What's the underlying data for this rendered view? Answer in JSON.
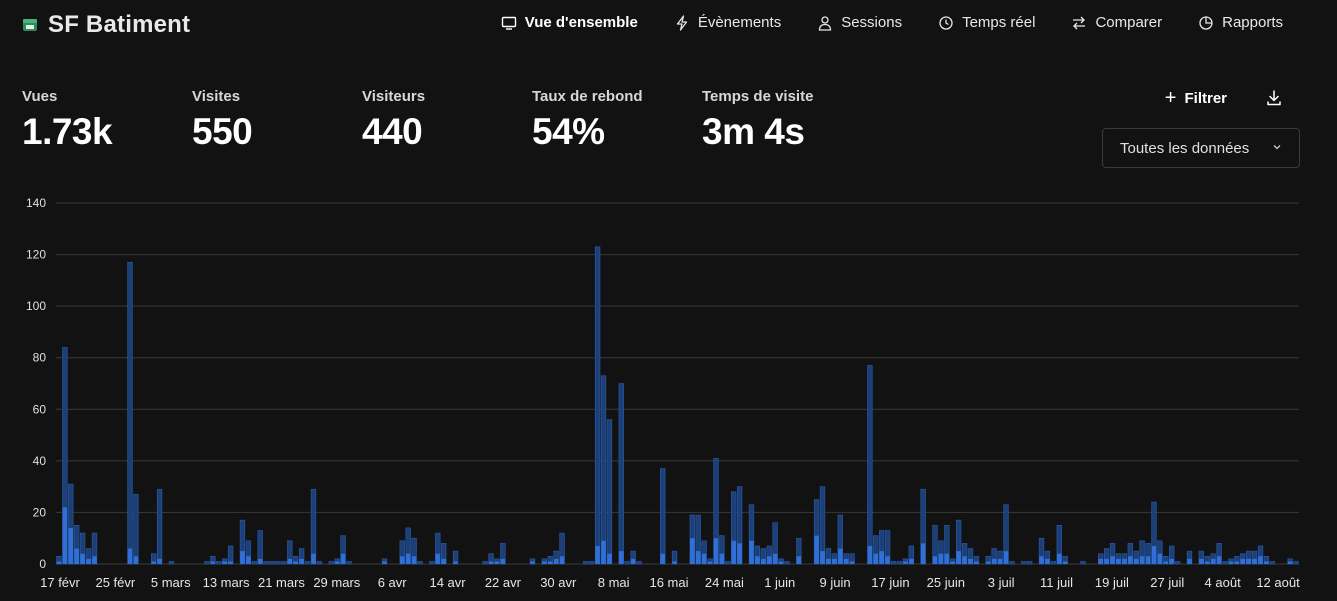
{
  "app": {
    "brand": "SF Batiment",
    "logo_icon": "website-icon"
  },
  "nav": [
    {
      "label": "Vue d'ensemble",
      "icon": "monitor-icon",
      "active": true
    },
    {
      "label": "Évènements",
      "icon": "bolt-icon",
      "active": false
    },
    {
      "label": "Sessions",
      "icon": "user-icon",
      "active": false
    },
    {
      "label": "Temps réel",
      "icon": "clock-icon",
      "active": false
    },
    {
      "label": "Comparer",
      "icon": "arrows-icon",
      "active": false
    },
    {
      "label": "Rapports",
      "icon": "pie-icon",
      "active": false
    }
  ],
  "metrics": [
    {
      "label": "Vues",
      "value": "1.73k"
    },
    {
      "label": "Visites",
      "value": "550"
    },
    {
      "label": "Visiteurs",
      "value": "440"
    },
    {
      "label": "Taux de rebond",
      "value": "54%"
    },
    {
      "label": "Temps de visite",
      "value": "3m 4s"
    }
  ],
  "toolbar": {
    "filter_label": "Filtrer",
    "filter_icon": "plus-icon",
    "download_icon": "download-icon"
  },
  "date_select": {
    "value": "Toutes les données",
    "icon": "chevron-down-icon"
  },
  "colors": {
    "background": "#121212",
    "visits": "#2f6fd6",
    "views": "#1d3f78",
    "views_border": "#2a5aa8",
    "grid": "#3a3a3a"
  },
  "chart_data": {
    "type": "bar",
    "stacked_overlay": true,
    "ylim": [
      0,
      140
    ],
    "yticks": [
      0,
      20,
      40,
      60,
      80,
      100,
      120,
      140
    ],
    "grid": true,
    "xtick_labels": [
      "17 févr",
      "25 févr",
      "5 mars",
      "13 mars",
      "21 mars",
      "29 mars",
      "6 avr",
      "14 avr",
      "22 avr",
      "30 avr",
      "8 mai",
      "16 mai",
      "24 mai",
      "1 juin",
      "9 juin",
      "17 juin",
      "25 juin",
      "3 juil",
      "11 juil",
      "19 juil",
      "27 juil",
      "4 août",
      "12 août"
    ],
    "series": [
      {
        "values": [
          3,
          84,
          31,
          15,
          12,
          6,
          12,
          0,
          0,
          0,
          0,
          0,
          117,
          27,
          0,
          0,
          4,
          29,
          0,
          1,
          0,
          0,
          0,
          0,
          0,
          1,
          3,
          1,
          2,
          7,
          0,
          17,
          9,
          1,
          13,
          1,
          1,
          1,
          1,
          9,
          3,
          6,
          1,
          29,
          1,
          0,
          1,
          2,
          11,
          1,
          0,
          0,
          0,
          0,
          0,
          2,
          0,
          0,
          9,
          14,
          10,
          1,
          0,
          1,
          12,
          8,
          0,
          5,
          0,
          0,
          0,
          0,
          1,
          4,
          2,
          8,
          0,
          0,
          0,
          0,
          2,
          0,
          2,
          3,
          5,
          12,
          0,
          0,
          0,
          1,
          1,
          123,
          73,
          56,
          0,
          70,
          1,
          5,
          1,
          0,
          0,
          0,
          37,
          0,
          5,
          0,
          0,
          19,
          19,
          9,
          2,
          41,
          11,
          1,
          28,
          30,
          0,
          23,
          7,
          6,
          7,
          16,
          2,
          1,
          0,
          10,
          0,
          0,
          25,
          30,
          6,
          4,
          19,
          4,
          4,
          0,
          0,
          77,
          11,
          13,
          13,
          1,
          1,
          2,
          7,
          0,
          29,
          0,
          15,
          9,
          15,
          2,
          17,
          8,
          6,
          3,
          0,
          3,
          6,
          5,
          23,
          1,
          0,
          1,
          1,
          0,
          10,
          5,
          1,
          15,
          3,
          0,
          0,
          1,
          0,
          0,
          4,
          6,
          8,
          4,
          4,
          8,
          5,
          9,
          8,
          24,
          9,
          3,
          7,
          1,
          0,
          5,
          0,
          5,
          3,
          4,
          8,
          1,
          2,
          3,
          4,
          5,
          5,
          7,
          3,
          1,
          0,
          0,
          2,
          1
        ]
      },
      {
        "values": [
          1,
          22,
          14,
          6,
          4,
          2,
          3,
          0,
          0,
          0,
          0,
          0,
          6,
          3,
          0,
          0,
          1,
          2,
          0,
          0,
          0,
          0,
          0,
          0,
          0,
          0,
          1,
          0,
          1,
          1,
          0,
          5,
          3,
          0,
          2,
          0,
          0,
          0,
          0,
          2,
          1,
          2,
          0,
          4,
          0,
          0,
          0,
          1,
          4,
          0,
          0,
          0,
          0,
          0,
          0,
          1,
          0,
          0,
          3,
          4,
          3,
          0,
          0,
          0,
          4,
          2,
          0,
          1,
          0,
          0,
          0,
          0,
          0,
          1,
          1,
          2,
          0,
          0,
          0,
          0,
          1,
          0,
          1,
          1,
          2,
          3,
          0,
          0,
          0,
          0,
          0,
          7,
          9,
          4,
          0,
          5,
          0,
          2,
          0,
          0,
          0,
          0,
          4,
          0,
          1,
          0,
          0,
          10,
          5,
          4,
          1,
          10,
          4,
          0,
          9,
          8,
          0,
          9,
          3,
          2,
          3,
          4,
          1,
          0,
          0,
          3,
          0,
          0,
          11,
          5,
          2,
          2,
          6,
          2,
          1,
          0,
          0,
          7,
          4,
          5,
          3,
          0,
          0,
          1,
          2,
          0,
          8,
          0,
          3,
          4,
          4,
          1,
          5,
          3,
          2,
          1,
          0,
          1,
          2,
          2,
          5,
          0,
          0,
          0,
          0,
          0,
          3,
          2,
          0,
          4,
          1,
          0,
          0,
          0,
          0,
          0,
          2,
          2,
          3,
          2,
          2,
          3,
          2,
          3,
          3,
          7,
          4,
          1,
          2,
          0,
          0,
          2,
          0,
          2,
          1,
          2,
          3,
          0,
          1,
          1,
          2,
          2,
          2,
          3,
          1,
          0,
          0,
          0,
          1,
          0
        ]
      }
    ]
  }
}
